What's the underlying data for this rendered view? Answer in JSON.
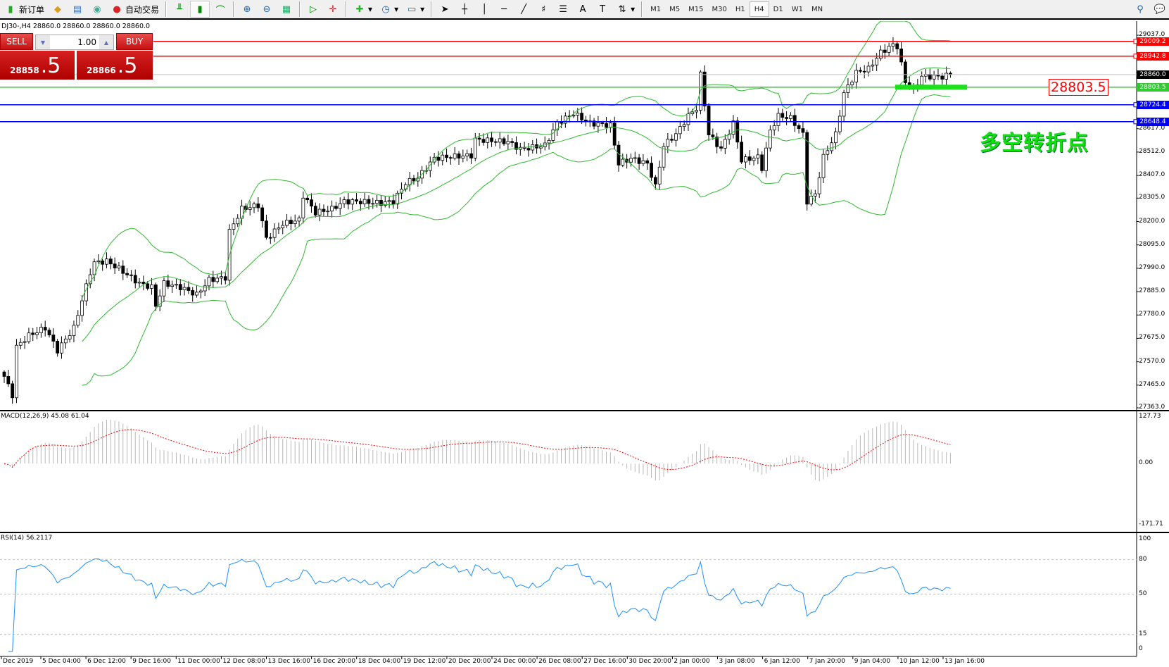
{
  "toolbar": {
    "new_order": "新订单",
    "auto_trading": "自动交易",
    "timeframes": [
      "M1",
      "M5",
      "M15",
      "M30",
      "H1",
      "H4",
      "D1",
      "W1",
      "MN"
    ],
    "active_timeframe": "H4"
  },
  "chart": {
    "symbol_line": "DJ30-,H4  28860.0 28860.0 28860.0 28860.0",
    "trade_panel": {
      "sell": "SELL",
      "buy": "BUY",
      "lot": "1.00",
      "sell_main": "28858",
      "sell_frac": ".5",
      "buy_main": "28866",
      "buy_frac": ".5"
    },
    "annotation": "多空转折点",
    "price_box": "28803.5",
    "price_ticks": [
      "29037.0",
      "28617.0",
      "28512.0",
      "28407.0",
      "28305.0",
      "28200.0",
      "28095.0",
      "27990.0",
      "27885.0",
      "27780.0",
      "27675.0",
      "27570.0",
      "27465.0",
      "27363.0"
    ],
    "levels": [
      {
        "label": "29009.2",
        "value": 29009.2,
        "color": "#ff0000"
      },
      {
        "label": "28942.8",
        "value": 28942.8,
        "color": "#ff0000"
      },
      {
        "label": "28860.0",
        "value": 28860.0,
        "color": "#000000"
      },
      {
        "label": "28803.5",
        "value": 28803.5,
        "color": "#32c832"
      },
      {
        "label": "28724.4",
        "value": 28724.4,
        "color": "#0000ff"
      },
      {
        "label": "28648.4",
        "value": 28648.4,
        "color": "#0000ff"
      }
    ],
    "time_labels": [
      "Dec 2019",
      "5 Dec 04:00",
      "6 Dec 12:00",
      "9 Dec 16:00",
      "11 Dec 00:00",
      "12 Dec 08:00",
      "13 Dec 16:00",
      "16 Dec 20:00",
      "18 Dec 04:00",
      "19 Dec 12:00",
      "20 Dec 20:00",
      "24 Dec 00:00",
      "26 Dec 08:00",
      "27 Dec 16:00",
      "30 Dec 20:00",
      "2 Jan 00:00",
      "3 Jan 08:00",
      "6 Jan 12:00",
      "7 Jan 20:00",
      "9 Jan 04:00",
      "10 Jan 12:00",
      "13 Jan 16:00"
    ],
    "macd": {
      "label": "MACD(12,26,9) 45.08 61.04",
      "ticks": [
        "127.73",
        "0.00",
        "-171.71"
      ]
    },
    "rsi": {
      "label": "RSI(14) 56.2117",
      "ticks": [
        "100",
        "80",
        "50",
        "15",
        "0"
      ]
    }
  },
  "chart_data": {
    "type": "candlestick",
    "ylim": [
      27363,
      29037
    ],
    "close_waypoints": [
      [
        0,
        27504
      ],
      [
        2,
        27420
      ],
      [
        3,
        27637
      ],
      [
        6,
        27688
      ],
      [
        10,
        27722
      ],
      [
        13,
        27621
      ],
      [
        17,
        27722
      ],
      [
        21,
        27972
      ],
      [
        22,
        28015
      ],
      [
        25,
        28022
      ],
      [
        28,
        27988
      ],
      [
        33,
        27922
      ],
      [
        36,
        27905
      ],
      [
        37,
        27822
      ],
      [
        39,
        27922
      ],
      [
        43,
        27905
      ],
      [
        47,
        27871
      ],
      [
        50,
        27938
      ],
      [
        54,
        27948
      ],
      [
        55,
        28156
      ],
      [
        58,
        28257
      ],
      [
        62,
        28273
      ],
      [
        64,
        28123
      ],
      [
        68,
        28190
      ],
      [
        72,
        28207
      ],
      [
        73,
        28317
      ],
      [
        76,
        28240
      ],
      [
        80,
        28257
      ],
      [
        83,
        28290
      ],
      [
        86,
        28290
      ],
      [
        92,
        28283
      ],
      [
        95,
        28290
      ],
      [
        98,
        28374
      ],
      [
        101,
        28397
      ],
      [
        105,
        28484
      ],
      [
        108,
        28490
      ],
      [
        114,
        28497
      ],
      [
        115,
        28568
      ],
      [
        123,
        28558
      ],
      [
        126,
        28525
      ],
      [
        132,
        28542
      ],
      [
        135,
        28642
      ],
      [
        139,
        28686
      ],
      [
        143,
        28642
      ],
      [
        148,
        28632
      ],
      [
        150,
        28460
      ],
      [
        153,
        28484
      ],
      [
        157,
        28460
      ],
      [
        159,
        28357
      ],
      [
        161,
        28542
      ],
      [
        164,
        28592
      ],
      [
        167,
        28675
      ],
      [
        169,
        28709
      ],
      [
        170,
        28860
      ],
      [
        172,
        28592
      ],
      [
        175,
        28525
      ],
      [
        178,
        28642
      ],
      [
        180,
        28475
      ],
      [
        184,
        28490
      ],
      [
        185,
        28440
      ],
      [
        187,
        28608
      ],
      [
        189,
        28675
      ],
      [
        192,
        28665
      ],
      [
        195,
        28592
      ],
      [
        196,
        28290
      ],
      [
        198,
        28323
      ],
      [
        200,
        28490
      ],
      [
        203,
        28592
      ],
      [
        205,
        28776
      ],
      [
        208,
        28870
      ],
      [
        211,
        28886
      ],
      [
        214,
        28960
      ],
      [
        217,
        28994
      ],
      [
        218,
        28987
      ],
      [
        220,
        28826
      ],
      [
        222,
        28793
      ],
      [
        224,
        28853
      ],
      [
        229,
        28850
      ],
      [
        231,
        28860
      ]
    ]
  }
}
